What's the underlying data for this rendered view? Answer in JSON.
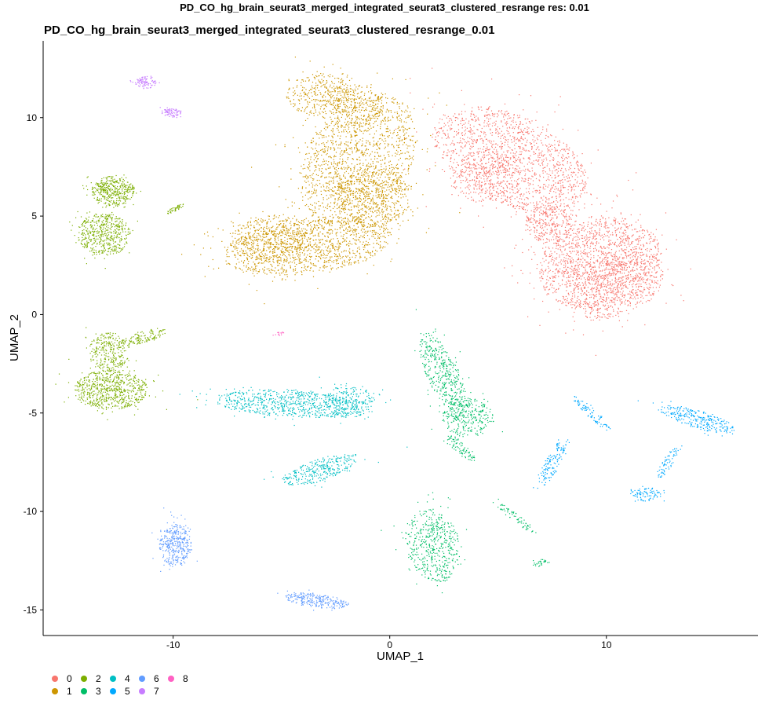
{
  "chart_data": {
    "type": "scatter",
    "suptitle": "PD_CO_hg_brain_seurat3_merged_integrated_seurat3_clustered_resrange res: 0.01",
    "title": "PD_CO_hg_brain_seurat3_merged_integrated_seurat3_clustered_resrange_0.01",
    "xlabel": "UMAP_1",
    "ylabel": "UMAP_2",
    "xlim": [
      -16.0,
      17.0
    ],
    "ylim": [
      -16.3,
      13.9
    ],
    "xticks": [
      -10,
      0,
      10
    ],
    "yticks": [
      -15,
      -10,
      -5,
      0,
      5,
      10
    ],
    "grid": false,
    "legend": "bottom-left",
    "series": [
      {
        "name": "0",
        "color": "#F8766D",
        "blobs": [
          {
            "cx": 5.6,
            "cy": 7.9,
            "rx": 3.9,
            "ry": 2.2,
            "rot": -30,
            "n": 1500
          },
          {
            "cx": 9.7,
            "cy": 2.6,
            "rx": 2.9,
            "ry": 2.3,
            "rot": 20,
            "n": 1500
          },
          {
            "cx": 10.5,
            "cy": 1.5,
            "rx": 2.3,
            "ry": 1.5,
            "rot": 30,
            "n": 500
          },
          {
            "cx": 7.3,
            "cy": 4.6,
            "rx": 1.1,
            "ry": 1.0,
            "rot": 0,
            "n": 280
          },
          {
            "cx": 4.2,
            "cy": 7.0,
            "rx": 1.5,
            "ry": 1.3,
            "rot": 0,
            "n": 280
          }
        ]
      },
      {
        "name": "1",
        "color": "#CD9600",
        "blobs": [
          {
            "cx": -1.5,
            "cy": 7.9,
            "rx": 3.6,
            "ry": 2.4,
            "rot": 62,
            "n": 1400
          },
          {
            "cx": -3.8,
            "cy": 3.5,
            "rx": 3.9,
            "ry": 1.4,
            "rot": 8,
            "n": 1200
          },
          {
            "cx": -0.8,
            "cy": 6.0,
            "rx": 1.7,
            "ry": 1.6,
            "rot": 0,
            "n": 550
          },
          {
            "cx": -5.5,
            "cy": 3.9,
            "rx": 1.8,
            "ry": 1.2,
            "rot": 0,
            "n": 400
          },
          {
            "cx": -3.2,
            "cy": 11.2,
            "rx": 1.6,
            "ry": 1.1,
            "rot": 0,
            "n": 300
          },
          {
            "cx": -1.8,
            "cy": 10.6,
            "rx": 1.5,
            "ry": 1.2,
            "rot": 0,
            "n": 280
          }
        ]
      },
      {
        "name": "2",
        "color": "#7CAE00",
        "blobs": [
          {
            "cx": -12.8,
            "cy": 6.3,
            "rx": 1.0,
            "ry": 0.75,
            "rot": 0,
            "n": 420
          },
          {
            "cx": -13.2,
            "cy": 4.1,
            "rx": 1.2,
            "ry": 1.1,
            "rot": 0,
            "n": 520
          },
          {
            "cx": -12.9,
            "cy": -3.8,
            "rx": 1.7,
            "ry": 1.0,
            "rot": 0,
            "n": 700
          },
          {
            "cx": -13.0,
            "cy": -1.9,
            "rx": 0.9,
            "ry": 1.0,
            "rot": 0,
            "n": 300
          },
          {
            "cx": -11.3,
            "cy": -1.1,
            "rx": 1.0,
            "ry": 0.3,
            "rot": 18,
            "n": 120
          },
          {
            "cx": -9.9,
            "cy": 5.4,
            "rx": 0.45,
            "ry": 0.12,
            "rot": 30,
            "n": 45
          }
        ]
      },
      {
        "name": "3",
        "color": "#00BE67",
        "blobs": [
          {
            "cx": 2.4,
            "cy": -2.9,
            "rx": 2.1,
            "ry": 0.75,
            "rot": -68,
            "n": 420
          },
          {
            "cx": 3.6,
            "cy": -5.2,
            "rx": 1.2,
            "ry": 1.0,
            "rot": 0,
            "n": 300
          },
          {
            "cx": 3.3,
            "cy": -6.8,
            "rx": 0.9,
            "ry": 0.3,
            "rot": -45,
            "n": 80
          },
          {
            "cx": 2.0,
            "cy": -11.7,
            "rx": 1.9,
            "ry": 1.2,
            "rot": -80,
            "n": 520
          },
          {
            "cx": 5.8,
            "cy": -10.3,
            "rx": 1.2,
            "ry": 0.2,
            "rot": -40,
            "n": 70
          },
          {
            "cx": 6.9,
            "cy": -12.6,
            "rx": 0.4,
            "ry": 0.2,
            "rot": 0,
            "n": 30
          }
        ]
      },
      {
        "name": "4",
        "color": "#00BFC4",
        "blobs": [
          {
            "cx": -4.5,
            "cy": -4.5,
            "rx": 3.5,
            "ry": 0.7,
            "rot": -3,
            "n": 750
          },
          {
            "cx": -1.9,
            "cy": -4.4,
            "rx": 1.2,
            "ry": 0.8,
            "rot": 0,
            "n": 200
          },
          {
            "cx": -3.3,
            "cy": -7.9,
            "rx": 1.8,
            "ry": 0.55,
            "rot": 20,
            "n": 320
          }
        ]
      },
      {
        "name": "5",
        "color": "#00A9FF",
        "blobs": [
          {
            "cx": 7.5,
            "cy": -7.5,
            "rx": 1.3,
            "ry": 0.35,
            "rot": 65,
            "n": 140
          },
          {
            "cx": 9.3,
            "cy": -5.0,
            "rx": 1.2,
            "ry": 0.25,
            "rot": -45,
            "n": 90
          },
          {
            "cx": 14.2,
            "cy": -5.3,
            "rx": 1.8,
            "ry": 0.45,
            "rot": -18,
            "n": 280
          },
          {
            "cx": 11.8,
            "cy": -9.1,
            "rx": 0.7,
            "ry": 0.35,
            "rot": 0,
            "n": 90
          },
          {
            "cx": 12.8,
            "cy": -7.5,
            "rx": 0.9,
            "ry": 0.25,
            "rot": 60,
            "n": 70
          }
        ]
      },
      {
        "name": "6",
        "color": "#619CFF",
        "blobs": [
          {
            "cx": -9.9,
            "cy": -11.7,
            "rx": 0.75,
            "ry": 1.1,
            "rot": 0,
            "n": 380
          },
          {
            "cx": -3.4,
            "cy": -14.5,
            "rx": 1.5,
            "ry": 0.35,
            "rot": -8,
            "n": 260
          }
        ]
      },
      {
        "name": "7",
        "color": "#C77CFF",
        "blobs": [
          {
            "cx": -11.3,
            "cy": 11.8,
            "rx": 0.5,
            "ry": 0.3,
            "rot": 0,
            "n": 95
          },
          {
            "cx": -10.1,
            "cy": 10.3,
            "rx": 0.45,
            "ry": 0.25,
            "rot": 0,
            "n": 80
          }
        ]
      },
      {
        "name": "8",
        "color": "#FF61C3",
        "blobs": [
          {
            "cx": -5.1,
            "cy": -0.95,
            "rx": 0.25,
            "ry": 0.1,
            "rot": 30,
            "n": 14
          }
        ]
      }
    ]
  }
}
